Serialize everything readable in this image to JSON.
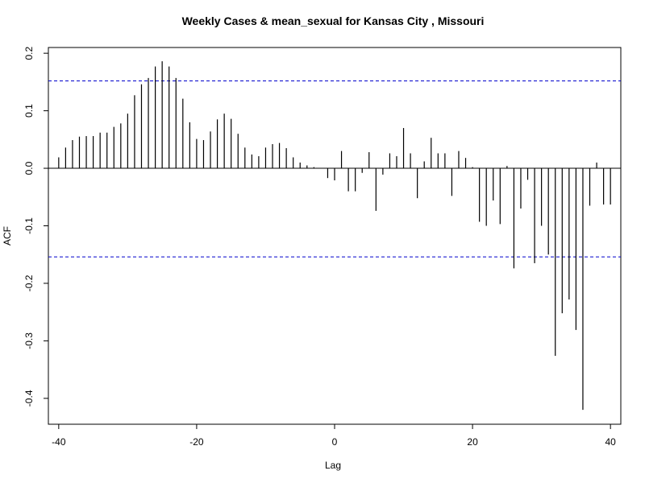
{
  "chart_data": {
    "type": "bar",
    "title": "Weekly Cases & mean_sexual for Kansas City , Missouri",
    "xlabel": "Lag",
    "ylabel": "ACF",
    "xlim": [
      -41.5,
      41.5
    ],
    "ylim": [
      -0.445,
      0.21
    ],
    "x_ticks": [
      -40,
      -20,
      0,
      20,
      40
    ],
    "x_tick_labels": [
      "-40",
      "-20",
      "0",
      "20",
      "40"
    ],
    "y_ticks": [
      -0.4,
      -0.3,
      -0.2,
      -0.1,
      0.0,
      0.1,
      0.2
    ],
    "y_tick_labels": [
      "-0.4",
      "-0.3",
      "-0.2",
      "-0.1",
      "0.0",
      "0.1",
      "0.2"
    ],
    "confidence_limits": [
      0.152,
      -0.154
    ],
    "confidence_color": "#0000cc",
    "bar_color": "#000000",
    "grid": false,
    "x": [
      -40,
      -39,
      -38,
      -37,
      -36,
      -35,
      -34,
      -33,
      -32,
      -31,
      -30,
      -29,
      -28,
      -27,
      -26,
      -25,
      -24,
      -23,
      -22,
      -21,
      -20,
      -19,
      -18,
      -17,
      -16,
      -15,
      -14,
      -13,
      -12,
      -11,
      -10,
      -9,
      -8,
      -7,
      -6,
      -5,
      -4,
      -3,
      -2,
      -1,
      0,
      1,
      2,
      3,
      4,
      5,
      6,
      7,
      8,
      9,
      10,
      11,
      12,
      13,
      14,
      15,
      16,
      17,
      18,
      19,
      20,
      21,
      22,
      23,
      24,
      25,
      26,
      27,
      28,
      29,
      30,
      31,
      32,
      33,
      34,
      35,
      36,
      37,
      38,
      39,
      40
    ],
    "values": [
      0.019,
      0.036,
      0.049,
      0.055,
      0.056,
      0.056,
      0.062,
      0.062,
      0.072,
      0.078,
      0.095,
      0.127,
      0.146,
      0.157,
      0.177,
      0.186,
      0.177,
      0.157,
      0.121,
      0.08,
      0.051,
      0.049,
      0.064,
      0.085,
      0.095,
      0.086,
      0.06,
      0.036,
      0.024,
      0.021,
      0.036,
      0.042,
      0.044,
      0.035,
      0.019,
      0.01,
      0.005,
      0.002,
      0.0,
      -0.017,
      -0.021,
      0.03,
      -0.04,
      -0.04,
      -0.008,
      0.028,
      -0.074,
      -0.011,
      0.026,
      0.021,
      0.07,
      0.026,
      -0.052,
      0.012,
      0.053,
      0.026,
      0.026,
      -0.048,
      0.03,
      0.018,
      0.002,
      -0.093,
      -0.1,
      -0.056,
      -0.097,
      0.004,
      -0.174,
      -0.07,
      -0.02,
      -0.165,
      -0.1,
      -0.15,
      -0.326,
      -0.252,
      -0.228,
      -0.281,
      -0.42,
      -0.065,
      0.01,
      -0.063,
      -0.063
    ]
  }
}
